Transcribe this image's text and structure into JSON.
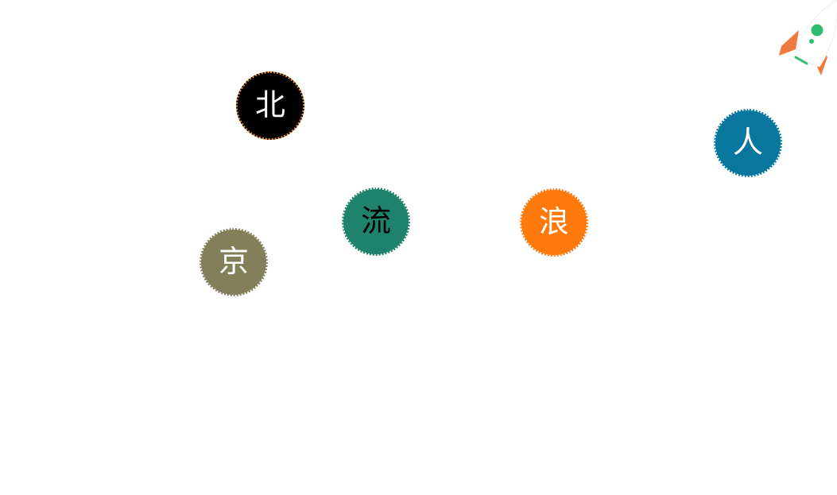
{
  "bubbles": [
    {
      "id": "bei",
      "char": "北",
      "color": "#000000",
      "text_color": "#ffffff"
    },
    {
      "id": "jing",
      "char": "京",
      "color": "#847f5b",
      "text_color": "#ffffff"
    },
    {
      "id": "liu",
      "char": "流",
      "color": "#1f826c",
      "text_color": "#000000"
    },
    {
      "id": "lang",
      "char": "浪",
      "color": "#ff7a0d",
      "text_color": "#ffffff"
    },
    {
      "id": "ren",
      "char": "人",
      "color": "#07779e",
      "text_color": "#ffffff"
    }
  ],
  "rocket": {
    "icon": "rocket-icon",
    "body_color": "#ffffff",
    "fin_color": "#f07a3c",
    "window_color": "#2ebc6e"
  }
}
